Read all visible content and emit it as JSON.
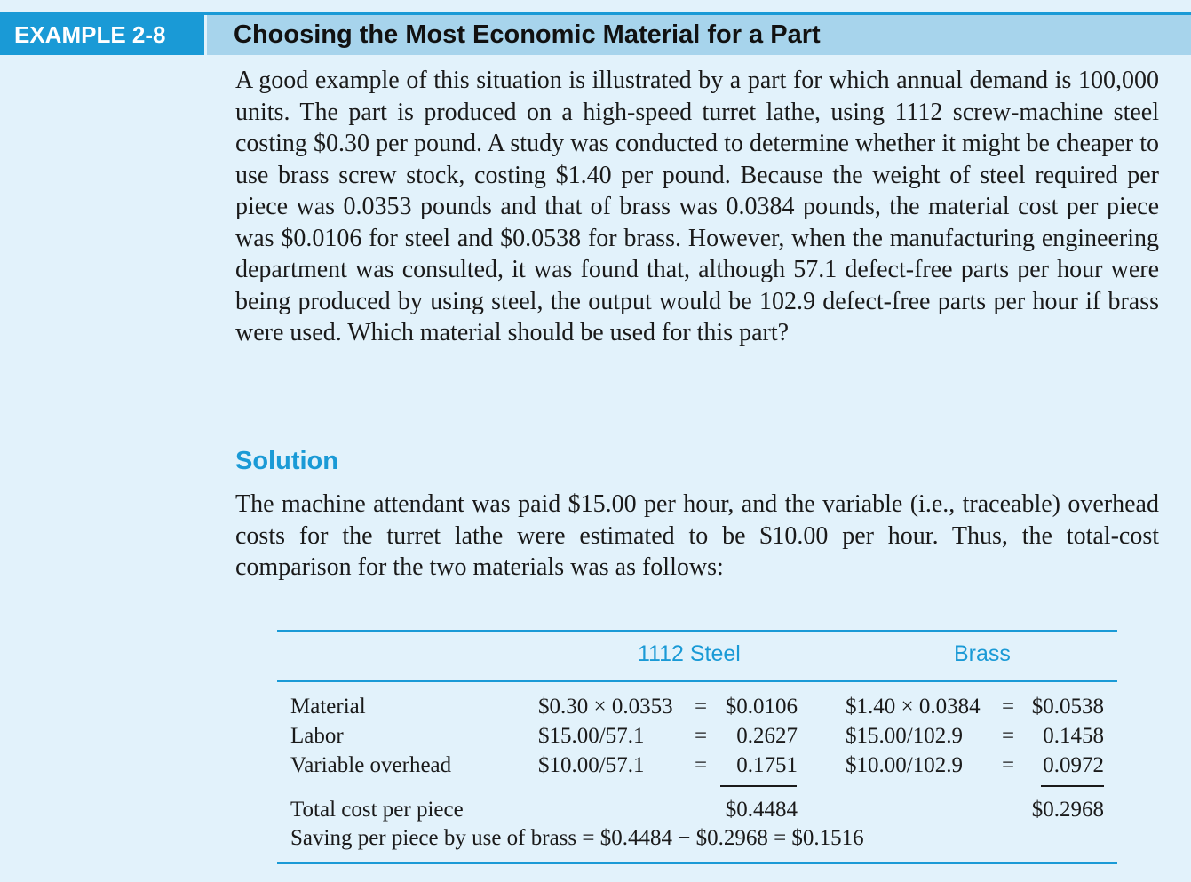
{
  "header": {
    "label": "EXAMPLE 2-8",
    "title": "Choosing the Most Economic Material for a Part"
  },
  "problem_text": "A good example of this situation is illustrated by a part for which annual demand is 100,000 units. The part is produced on a high-speed turret lathe, using 1112 screw-machine steel costing $0.30 per pound. A study was conducted to determine whether it might be cheaper to use brass screw stock, costing $1.40 per pound. Because the weight of steel required per piece was 0.0353 pounds and that of brass was 0.0384 pounds, the material cost per piece was $0.0106 for steel and $0.0538 for brass. However, when the manufacturing engineering department was consulted, it was found that, although 57.1 defect-free parts per hour were being produced by using steel, the output would be 102.9 defect-free parts per hour if brass were used. Which material should be used for this part?",
  "solution": {
    "heading": "Solution",
    "text": "The machine attendant was paid $15.00 per hour, and the variable (i.e., traceable) overhead costs for the turret lathe were estimated to be $10.00 per hour. Thus, the total-cost comparison for the two materials was as follows:"
  },
  "table": {
    "col_steel": "1112 Steel",
    "col_brass": "Brass",
    "rows": [
      {
        "label": "Material",
        "steel_formula": "$0.30 × 0.0353",
        "steel_eq": "=",
        "steel_value": "$0.0106",
        "brass_formula": "$1.40 × 0.0384",
        "brass_eq": "=",
        "brass_value": "$0.0538"
      },
      {
        "label": "Labor",
        "steel_formula": "$15.00/57.1",
        "steel_eq": "=",
        "steel_value": "0.2627",
        "brass_formula": "$15.00/102.9",
        "brass_eq": "=",
        "brass_value": "0.1458"
      },
      {
        "label": "Variable overhead",
        "steel_formula": "$10.00/57.1",
        "steel_eq": "=",
        "steel_value": "0.1751",
        "brass_formula": "$10.00/102.9",
        "brass_eq": "=",
        "brass_value": "0.0972"
      }
    ],
    "total_label": "Total cost per piece",
    "total_steel": "$0.4484",
    "total_brass": "$0.2968",
    "saving": "Saving per piece by use of brass = $0.4484 − $0.2968 = $0.1516"
  },
  "colors": {
    "accent": "#1a9ad6",
    "title_bar": "#a7d4ec",
    "background": "#e2f2fb"
  }
}
